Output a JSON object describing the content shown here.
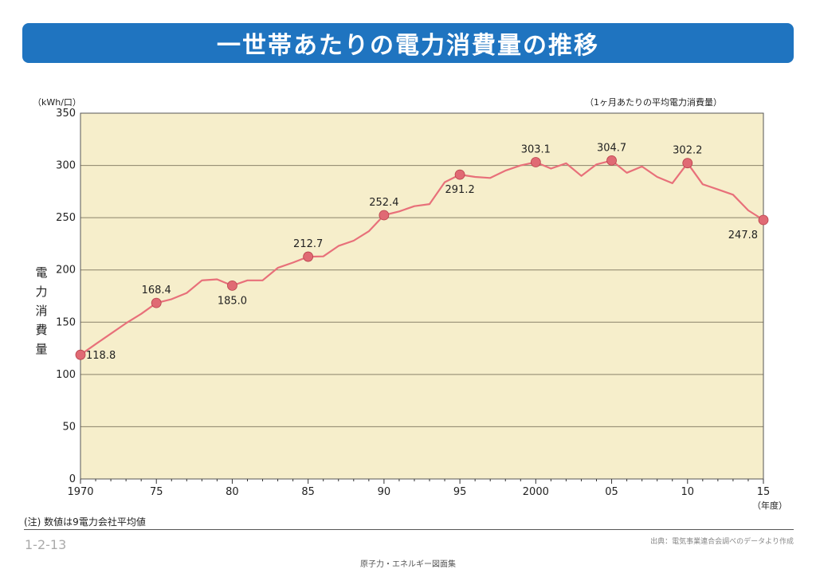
{
  "title": "一世帯あたりの電力消費量の推移",
  "unit_left": "（kWh/口）",
  "unit_right": "（1ヶ月あたりの平均電力消費量）",
  "ylabel": [
    "電",
    "力",
    "消",
    "費",
    "量"
  ],
  "xunit": "（年度）",
  "note": "(注) 数値は9電力会社平均値",
  "page_number": "1-2-13",
  "source": "出典：電気事業連合会調べのデータより作成",
  "footer": "原子力・エネルギー図面集",
  "colors": {
    "plot_bg": "#f6eecb",
    "line": "#e8707a",
    "marker": "#e06a74",
    "title_bg": "#1f74c0"
  },
  "chart_data": {
    "type": "line",
    "x": [
      1970,
      1971,
      1972,
      1973,
      1974,
      1975,
      1976,
      1977,
      1978,
      1979,
      1980,
      1981,
      1982,
      1983,
      1984,
      1985,
      1986,
      1987,
      1988,
      1989,
      1990,
      1991,
      1992,
      1993,
      1994,
      1995,
      1996,
      1997,
      1998,
      1999,
      2000,
      2001,
      2002,
      2003,
      2004,
      2005,
      2006,
      2007,
      2008,
      2009,
      2010,
      2011,
      2012,
      2013,
      2014,
      2015
    ],
    "values": [
      118.8,
      129,
      139,
      149,
      158,
      168.4,
      172,
      178,
      190,
      191,
      185.0,
      190,
      190,
      202,
      207,
      212.7,
      213,
      223,
      228,
      237,
      252.4,
      256,
      261,
      263,
      284,
      291.2,
      289,
      288,
      295,
      300,
      303.1,
      297,
      302,
      290,
      301,
      304.7,
      293,
      299,
      289,
      283,
      302.2,
      282,
      277,
      272,
      257,
      247.8
    ],
    "highlights": [
      {
        "x": 1970,
        "label": "118.8",
        "pos": "right"
      },
      {
        "x": 1975,
        "label": "168.4",
        "pos": "above"
      },
      {
        "x": 1980,
        "label": "185.0",
        "pos": "below"
      },
      {
        "x": 1985,
        "label": "212.7",
        "pos": "above"
      },
      {
        "x": 1990,
        "label": "252.4",
        "pos": "above"
      },
      {
        "x": 1995,
        "label": "291.2",
        "pos": "below"
      },
      {
        "x": 2000,
        "label": "303.1",
        "pos": "above"
      },
      {
        "x": 2005,
        "label": "304.7",
        "pos": "above"
      },
      {
        "x": 2010,
        "label": "302.2",
        "pos": "above"
      },
      {
        "x": 2015,
        "label": "247.8",
        "pos": "below-left"
      }
    ],
    "xticks": [
      {
        "x": 1970,
        "label": "1970"
      },
      {
        "x": 1975,
        "label": "75"
      },
      {
        "x": 1980,
        "label": "80"
      },
      {
        "x": 1985,
        "label": "85"
      },
      {
        "x": 1990,
        "label": "90"
      },
      {
        "x": 1995,
        "label": "95"
      },
      {
        "x": 2000,
        "label": "2000"
      },
      {
        "x": 2005,
        "label": "05"
      },
      {
        "x": 2010,
        "label": "10"
      },
      {
        "x": 2015,
        "label": "15"
      }
    ],
    "yticks": [
      0,
      50,
      100,
      150,
      200,
      250,
      300,
      350
    ],
    "xlim": [
      1970,
      2015
    ],
    "ylim": [
      0,
      350
    ],
    "grid": true
  }
}
